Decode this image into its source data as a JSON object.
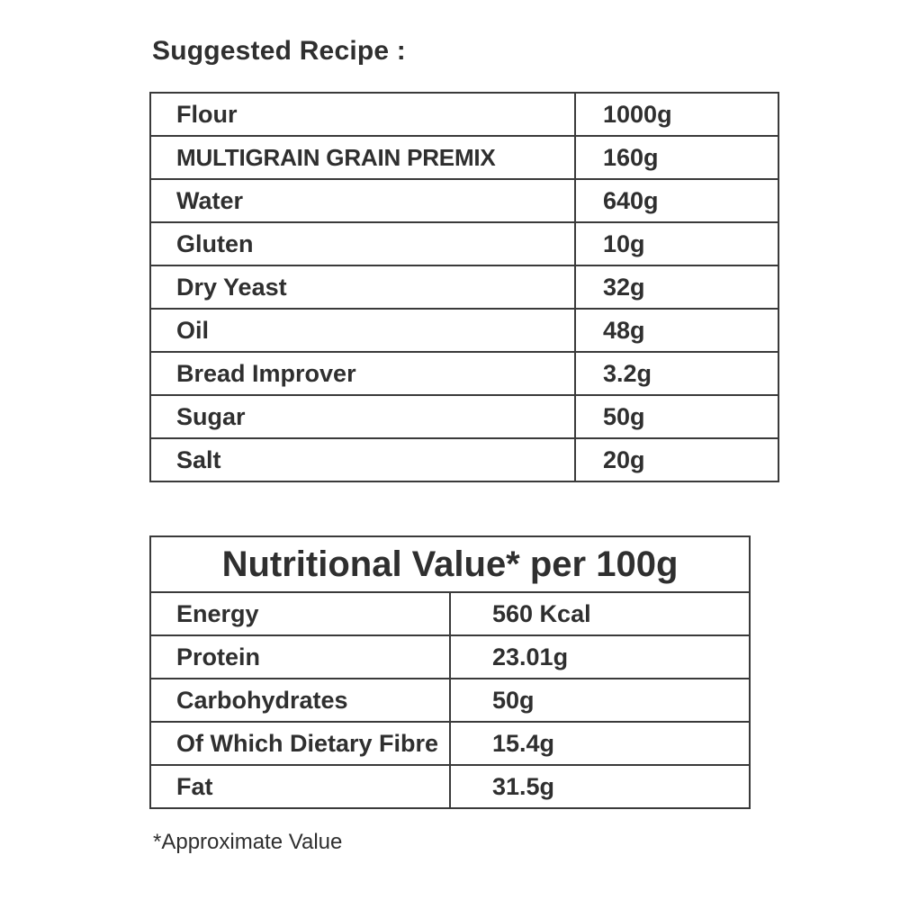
{
  "recipe": {
    "heading": "Suggested Recipe :",
    "rows": [
      {
        "ingredient": "Flour",
        "amount": "1000g"
      },
      {
        "ingredient": "MULTIGRAIN GRAIN PREMIX",
        "amount": "160g"
      },
      {
        "ingredient": "Water",
        "amount": "640g"
      },
      {
        "ingredient": "Gluten",
        "amount": "10g"
      },
      {
        "ingredient": "Dry Yeast",
        "amount": "32g"
      },
      {
        "ingredient": "Oil",
        "amount": "48g"
      },
      {
        "ingredient": "Bread Improver",
        "amount": "3.2g"
      },
      {
        "ingredient": "Sugar",
        "amount": "50g"
      },
      {
        "ingredient": "Salt",
        "amount": "20g"
      }
    ]
  },
  "nutrition": {
    "title": "Nutritional Value* per 100g",
    "rows": [
      {
        "nutrient": "Energy",
        "value": "560 Kcal"
      },
      {
        "nutrient": "Protein",
        "value": "23.01g"
      },
      {
        "nutrient": "Carbohydrates",
        "value": "50g"
      },
      {
        "nutrient": "Of Which Dietary Fibre",
        "value": "15.4g"
      },
      {
        "nutrient": "Fat",
        "value": "31.5g"
      }
    ],
    "footnote": "*Approximate Value"
  }
}
